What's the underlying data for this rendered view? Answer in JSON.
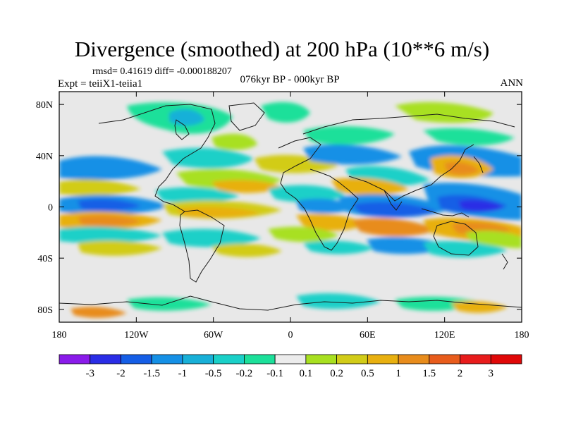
{
  "map": {
    "title": "Divergence (smoothed) at 200 hPa (10**6 m/s)",
    "stats": "rmsd= 0.41619 diff= -0.000188207",
    "experiment": "Expt = teiiX1-teiia1",
    "period": "076kyr BP - 000kyr BP",
    "season": "ANN",
    "lat_labels": [
      "80N",
      "40N",
      "0",
      "40S",
      "80S"
    ],
    "lat_values": [
      80,
      40,
      0,
      -40,
      -80
    ],
    "lon_labels": [
      "180",
      "120W",
      "60W",
      "0",
      "60E",
      "120E",
      "180"
    ],
    "lon_values": [
      -180,
      -120,
      -60,
      0,
      60,
      120,
      180
    ],
    "lat_range": [
      -90,
      90
    ],
    "lon_range": [
      -180,
      180
    ]
  },
  "colorbar": {
    "labels": [
      "-3",
      "-2",
      "-1.5",
      "-1",
      "-0.5",
      "-0.2",
      "-0.1",
      "0.1",
      "0.2",
      "0.5",
      "1",
      "1.5",
      "2",
      "3"
    ],
    "colors": [
      "#8a1bea",
      "#2a2de6",
      "#155ee6",
      "#1590e6",
      "#18b0d8",
      "#1ad0c8",
      "#1ce09a",
      "#ececec",
      "#a8e020",
      "#d2cc18",
      "#e8b010",
      "#e88c1c",
      "#e85c1c",
      "#e81c1c",
      "#e00808"
    ]
  },
  "colors": {
    "neutral": "#e8e8e8",
    "coast": "#1a1a1a"
  }
}
